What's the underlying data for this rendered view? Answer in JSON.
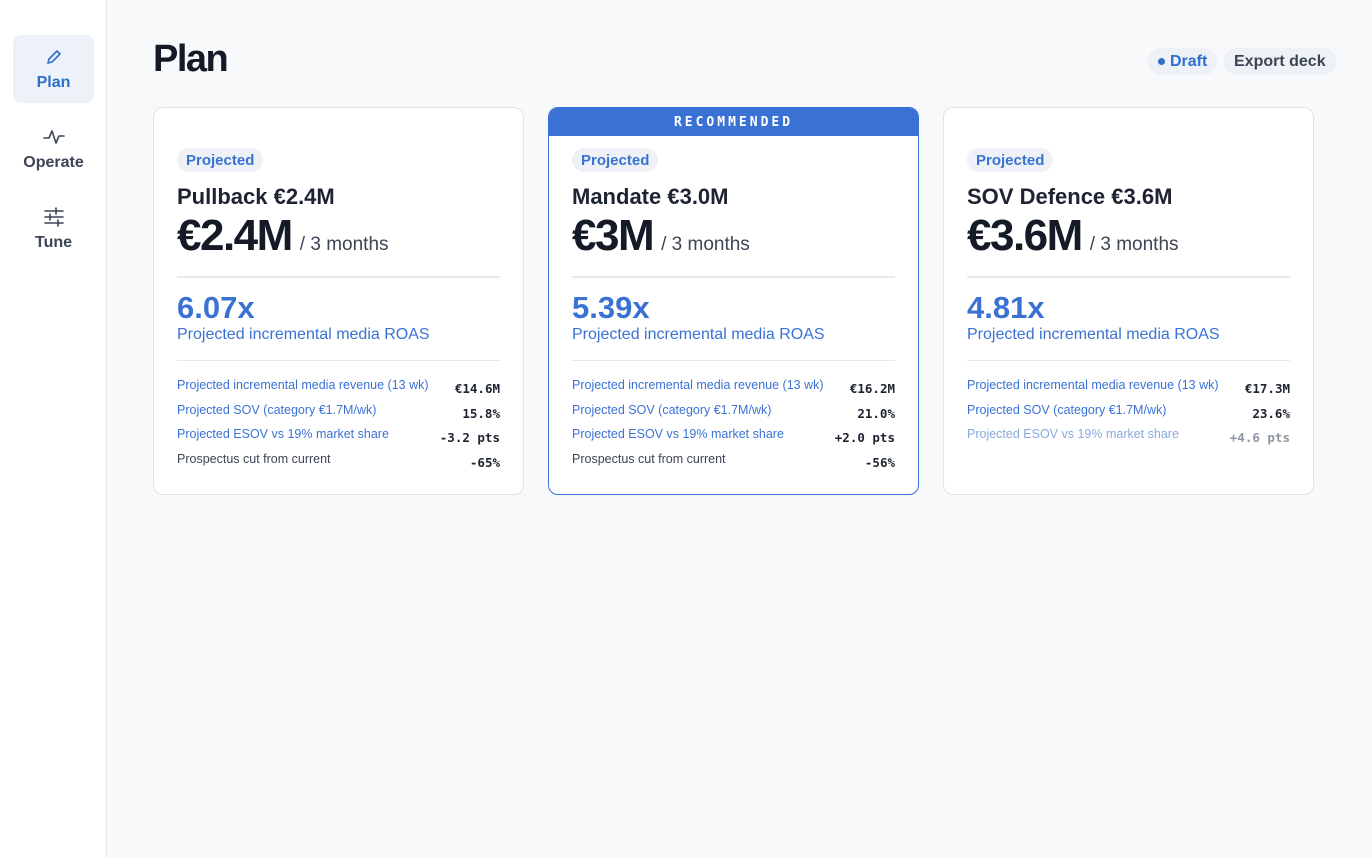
{
  "sidebar": {
    "items": [
      {
        "label": "Plan",
        "icon": "pencil-icon",
        "active": true
      },
      {
        "label": "Operate",
        "icon": "pulse-icon",
        "active": false
      },
      {
        "label": "Tune",
        "icon": "sliders-icon",
        "active": false
      }
    ]
  },
  "header": {
    "title": "Plan",
    "status": "Draft",
    "export_label": "Export deck"
  },
  "colors": {
    "accent": "#3a72d4",
    "text": "#1d2330",
    "muted": "#3c4555"
  },
  "cards": [
    {
      "pill": "Projected",
      "name": "Pullback €2.4M",
      "price": "€2.4M",
      "period": "/ 3 months",
      "roas": "6.07x",
      "roas_label": "Projected incremental media ROAS",
      "metrics": [
        {
          "label": "Projected incremental media revenue (13 wk)",
          "value": "€14.6M"
        },
        {
          "label": "Projected SOV (category €1.7M/wk)",
          "value": "15.8%"
        },
        {
          "label": "Projected ESOV vs 19% market share",
          "value": "-3.2 pts"
        },
        {
          "label": "Prospectus cut from current",
          "value": "-65%"
        }
      ]
    },
    {
      "recommended": "RECOMMENDED",
      "pill": "Projected",
      "name": "Mandate €3.0M",
      "price": "€3M",
      "period": "/ 3 months",
      "roas": "5.39x",
      "roas_label": "Projected incremental media ROAS",
      "metrics": [
        {
          "label": "Projected incremental media revenue (13 wk)",
          "value": "€16.2M"
        },
        {
          "label": "Projected SOV (category €1.7M/wk)",
          "value": "21.0%"
        },
        {
          "label": "Projected ESOV vs 19% market share",
          "value": "+2.0 pts"
        },
        {
          "label": "Prospectus cut from current",
          "value": "-56%"
        }
      ]
    },
    {
      "pill": "Projected",
      "name": "SOV Defence €3.6M",
      "price": "€3.6M",
      "period": "/ 3 months",
      "roas": "4.81x",
      "roas_label": "Projected incremental media ROAS",
      "metrics": [
        {
          "label": "Projected incremental media revenue (13 wk)",
          "value": "€17.3M"
        },
        {
          "label": "Projected SOV (category €1.7M/wk)",
          "value": "23.6%"
        },
        {
          "label": "Projected ESOV vs 19% market share",
          "value": "+4.6 pts"
        }
      ]
    }
  ]
}
